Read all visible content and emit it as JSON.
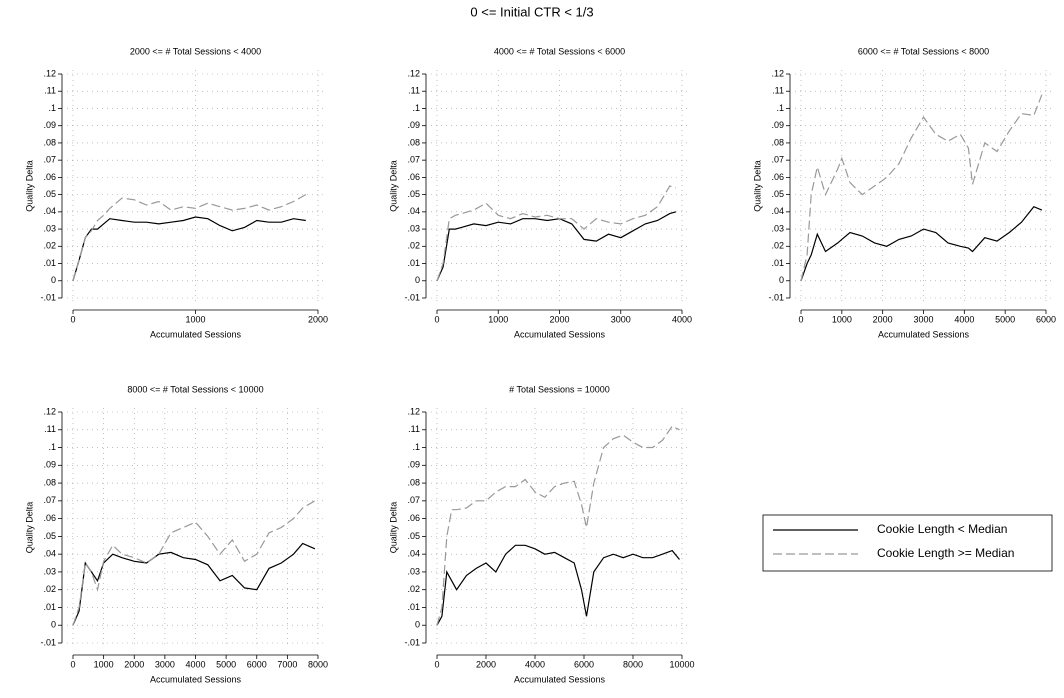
{
  "title": "0 <= Initial CTR < 1/3",
  "legend": {
    "position": "right",
    "entries": [
      "Cookie Length < Median",
      "Cookie Length >= Median"
    ]
  },
  "chart_data": [
    {
      "type": "line",
      "title": "2000 <= # Total Sessions < 4000",
      "x_label": "Accumulated Sessions",
      "y_label": "Quality Delta",
      "x": [
        0,
        50,
        100,
        150,
        200,
        250,
        300,
        400,
        500,
        600,
        700,
        800,
        900,
        1000,
        1100,
        1200,
        1300,
        1400,
        1500,
        1600,
        1700,
        1800,
        1900
      ],
      "series": [
        {
          "color": "#000000",
          "dash": "solid",
          "values": [
            0,
            0.012,
            0.025,
            0.03,
            0.03,
            0.033,
            0.036,
            0.035,
            0.034,
            0.034,
            0.033,
            0.034,
            0.035,
            0.037,
            0.036,
            0.032,
            0.029,
            0.031,
            0.035,
            0.034,
            0.034,
            0.036,
            0.035
          ]
        },
        {
          "color": "#999999",
          "dash": "dashed",
          "values": [
            0,
            0.012,
            0.025,
            0.029,
            0.035,
            0.038,
            0.042,
            0.048,
            0.047,
            0.044,
            0.046,
            0.041,
            0.043,
            0.042,
            0.045,
            0.043,
            0.041,
            0.042,
            0.044,
            0.041,
            0.043,
            0.046,
            0.05
          ]
        }
      ],
      "xlim": [
        0,
        2000
      ],
      "xticks": [
        0,
        1000,
        2000
      ],
      "ylim": [
        -0.01,
        0.12
      ],
      "yticks": [
        {
          "value": -0.01,
          "label": "-.01"
        },
        0,
        {
          "value": 0.01,
          "label": ".01"
        },
        {
          "value": 0.02,
          "label": ".02"
        },
        {
          "value": 0.03,
          "label": ".03"
        },
        {
          "value": 0.04,
          "label": ".04"
        },
        {
          "value": 0.05,
          "label": ".05"
        },
        {
          "value": 0.06,
          "label": ".06"
        },
        {
          "value": 0.07,
          "label": ".07"
        },
        {
          "value": 0.08,
          "label": ".08"
        },
        {
          "value": 0.09,
          "label": ".09"
        },
        {
          "value": 0.1,
          "label": ".1"
        },
        {
          "value": 0.11,
          "label": ".11"
        },
        {
          "value": 0.12,
          "label": ".12"
        }
      ],
      "grid": true
    },
    {
      "type": "line",
      "title": "4000 <= # Total Sessions < 6000",
      "x_label": "Accumulated Sessions",
      "y_label": "Quality Delta",
      "x": [
        0,
        100,
        200,
        300,
        400,
        600,
        800,
        1000,
        1200,
        1400,
        1600,
        1800,
        2000,
        2200,
        2400,
        2600,
        2800,
        3000,
        3200,
        3400,
        3600,
        3800,
        3900
      ],
      "series": [
        {
          "color": "#000000",
          "dash": "solid",
          "values": [
            0,
            0.008,
            0.03,
            0.03,
            0.031,
            0.033,
            0.032,
            0.034,
            0.033,
            0.036,
            0.036,
            0.035,
            0.036,
            0.033,
            0.024,
            0.023,
            0.027,
            0.025,
            0.029,
            0.033,
            0.035,
            0.039,
            0.04
          ]
        },
        {
          "color": "#999999",
          "dash": "dashed",
          "values": [
            0,
            0.01,
            0.036,
            0.038,
            0.039,
            0.041,
            0.045,
            0.038,
            0.036,
            0.039,
            0.037,
            0.038,
            0.036,
            0.036,
            0.03,
            0.036,
            0.034,
            0.033,
            0.036,
            0.038,
            0.043,
            0.055,
            0.054
          ]
        }
      ],
      "xlim": [
        0,
        4000
      ],
      "xticks": [
        0,
        1000,
        2000,
        3000,
        4000
      ],
      "ylim": [
        -0.01,
        0.12
      ],
      "yticks": [
        {
          "value": -0.01,
          "label": "-.01"
        },
        0,
        {
          "value": 0.01,
          "label": ".01"
        },
        {
          "value": 0.02,
          "label": ".02"
        },
        {
          "value": 0.03,
          "label": ".03"
        },
        {
          "value": 0.04,
          "label": ".04"
        },
        {
          "value": 0.05,
          "label": ".05"
        },
        {
          "value": 0.06,
          "label": ".06"
        },
        {
          "value": 0.07,
          "label": ".07"
        },
        {
          "value": 0.08,
          "label": ".08"
        },
        {
          "value": 0.09,
          "label": ".09"
        },
        {
          "value": 0.1,
          "label": ".1"
        },
        {
          "value": 0.11,
          "label": ".11"
        },
        {
          "value": 0.12,
          "label": ".12"
        }
      ],
      "grid": true
    },
    {
      "type": "line",
      "title": "6000 <= # Total Sessions < 8000",
      "x_label": "Accumulated Sessions",
      "y_label": "Quality Delta",
      "x": [
        0,
        150,
        250,
        400,
        600,
        900,
        1000,
        1200,
        1500,
        1800,
        2100,
        2400,
        2700,
        3000,
        3300,
        3600,
        3900,
        4100,
        4200,
        4500,
        4800,
        5100,
        5400,
        5700,
        5900
      ],
      "series": [
        {
          "color": "#000000",
          "dash": "solid",
          "values": [
            0,
            0.01,
            0.015,
            0.027,
            0.017,
            0.022,
            0.024,
            0.028,
            0.026,
            0.022,
            0.02,
            0.024,
            0.026,
            0.03,
            0.028,
            0.022,
            0.02,
            0.019,
            0.017,
            0.025,
            0.023,
            0.028,
            0.034,
            0.043,
            0.041
          ]
        },
        {
          "color": "#999999",
          "dash": "dashed",
          "values": [
            0,
            0.015,
            0.05,
            0.066,
            0.05,
            0.065,
            0.071,
            0.057,
            0.05,
            0.055,
            0.06,
            0.068,
            0.083,
            0.095,
            0.085,
            0.081,
            0.085,
            0.077,
            0.056,
            0.08,
            0.075,
            0.087,
            0.097,
            0.096,
            0.108
          ]
        }
      ],
      "xlim": [
        0,
        6000
      ],
      "xticks": [
        0,
        1000,
        2000,
        3000,
        4000,
        5000,
        6000
      ],
      "ylim": [
        -0.01,
        0.12
      ],
      "yticks": [
        {
          "value": -0.01,
          "label": "-.01"
        },
        0,
        {
          "value": 0.01,
          "label": ".01"
        },
        {
          "value": 0.02,
          "label": ".02"
        },
        {
          "value": 0.03,
          "label": ".03"
        },
        {
          "value": 0.04,
          "label": ".04"
        },
        {
          "value": 0.05,
          "label": ".05"
        },
        {
          "value": 0.06,
          "label": ".06"
        },
        {
          "value": 0.07,
          "label": ".07"
        },
        {
          "value": 0.08,
          "label": ".08"
        },
        {
          "value": 0.09,
          "label": ".09"
        },
        {
          "value": 0.1,
          "label": ".1"
        },
        {
          "value": 0.11,
          "label": ".11"
        },
        {
          "value": 0.12,
          "label": ".12"
        }
      ],
      "grid": true
    },
    {
      "type": "line",
      "title": "8000 <= # Total Sessions < 10000",
      "x_label": "Accumulated Sessions",
      "y_label": "Quality Delta",
      "x": [
        0,
        200,
        400,
        600,
        800,
        1000,
        1300,
        1600,
        2000,
        2400,
        2800,
        3200,
        3600,
        4000,
        4400,
        4800,
        5200,
        5600,
        6000,
        6400,
        6800,
        7200,
        7500,
        7900
      ],
      "series": [
        {
          "color": "#000000",
          "dash": "solid",
          "values": [
            0,
            0.008,
            0.035,
            0.03,
            0.025,
            0.035,
            0.04,
            0.038,
            0.036,
            0.035,
            0.04,
            0.041,
            0.038,
            0.037,
            0.034,
            0.025,
            0.028,
            0.021,
            0.02,
            0.032,
            0.035,
            0.04,
            0.046,
            0.043
          ]
        },
        {
          "color": "#999999",
          "dash": "dashed",
          "values": [
            0,
            0.01,
            0.035,
            0.03,
            0.02,
            0.036,
            0.045,
            0.04,
            0.038,
            0.035,
            0.04,
            0.052,
            0.055,
            0.058,
            0.05,
            0.04,
            0.048,
            0.036,
            0.04,
            0.052,
            0.055,
            0.06,
            0.066,
            0.07
          ]
        }
      ],
      "xlim": [
        0,
        8000
      ],
      "xticks": [
        0,
        1000,
        2000,
        3000,
        4000,
        5000,
        6000,
        7000,
        8000
      ],
      "ylim": [
        -0.01,
        0.12
      ],
      "yticks": [
        {
          "value": -0.01,
          "label": "-.01"
        },
        0,
        {
          "value": 0.01,
          "label": ".01"
        },
        {
          "value": 0.02,
          "label": ".02"
        },
        {
          "value": 0.03,
          "label": ".03"
        },
        {
          "value": 0.04,
          "label": ".04"
        },
        {
          "value": 0.05,
          "label": ".05"
        },
        {
          "value": 0.06,
          "label": ".06"
        },
        {
          "value": 0.07,
          "label": ".07"
        },
        {
          "value": 0.08,
          "label": ".08"
        },
        {
          "value": 0.09,
          "label": ".09"
        },
        {
          "value": 0.1,
          "label": ".1"
        },
        {
          "value": 0.11,
          "label": ".11"
        },
        {
          "value": 0.12,
          "label": ".12"
        }
      ],
      "grid": true
    },
    {
      "type": "line",
      "title": "# Total Sessions = 10000",
      "x_label": "Accumulated Sessions",
      "y_label": "Quality Delta",
      "x": [
        0,
        200,
        400,
        600,
        800,
        1200,
        1600,
        2000,
        2400,
        2800,
        3200,
        3600,
        4000,
        4400,
        4800,
        5200,
        5600,
        5900,
        6100,
        6400,
        6800,
        7200,
        7600,
        8000,
        8400,
        8800,
        9200,
        9600,
        9900
      ],
      "series": [
        {
          "color": "#000000",
          "dash": "solid",
          "values": [
            0,
            0.005,
            0.03,
            0.025,
            0.02,
            0.028,
            0.032,
            0.035,
            0.03,
            0.04,
            0.045,
            0.045,
            0.043,
            0.04,
            0.041,
            0.038,
            0.035,
            0.02,
            0.005,
            0.03,
            0.038,
            0.04,
            0.038,
            0.04,
            0.038,
            0.038,
            0.04,
            0.042,
            0.037
          ]
        },
        {
          "color": "#999999",
          "dash": "dashed",
          "values": [
            0,
            0.01,
            0.05,
            0.065,
            0.065,
            0.066,
            0.07,
            0.07,
            0.075,
            0.078,
            0.078,
            0.082,
            0.075,
            0.072,
            0.078,
            0.08,
            0.081,
            0.068,
            0.055,
            0.08,
            0.1,
            0.105,
            0.107,
            0.103,
            0.1,
            0.1,
            0.104,
            0.112,
            0.11
          ]
        }
      ],
      "xlim": [
        0,
        10000
      ],
      "xticks": [
        0,
        2000,
        4000,
        6000,
        8000,
        10000
      ],
      "ylim": [
        -0.01,
        0.12
      ],
      "yticks": [
        {
          "value": -0.01,
          "label": "-.01"
        },
        0,
        {
          "value": 0.01,
          "label": ".01"
        },
        {
          "value": 0.02,
          "label": ".02"
        },
        {
          "value": 0.03,
          "label": ".03"
        },
        {
          "value": 0.04,
          "label": ".04"
        },
        {
          "value": 0.05,
          "label": ".05"
        },
        {
          "value": 0.06,
          "label": ".06"
        },
        {
          "value": 0.07,
          "label": ".07"
        },
        {
          "value": 0.08,
          "label": ".08"
        },
        {
          "value": 0.09,
          "label": ".09"
        },
        {
          "value": 0.1,
          "label": ".1"
        },
        {
          "value": 0.11,
          "label": ".11"
        },
        {
          "value": 0.12,
          "label": ".12"
        }
      ],
      "grid": true
    }
  ]
}
